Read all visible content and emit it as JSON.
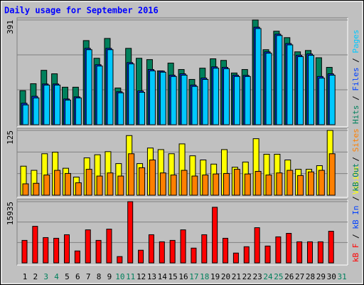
{
  "chart_data": {
    "type": "bar",
    "title": "Daily usage for September 2016",
    "categories": [
      "1",
      "2",
      "3",
      "4",
      "5",
      "6",
      "7",
      "8",
      "9",
      "10",
      "11",
      "12",
      "13",
      "14",
      "15",
      "16",
      "17",
      "18",
      "19",
      "20",
      "21",
      "22",
      "23",
      "24",
      "25",
      "26",
      "27",
      "28",
      "29",
      "30",
      "31"
    ],
    "category_colors": [
      "#000000",
      "#000000",
      "#00805c",
      "#00805c",
      "#000000",
      "#000000",
      "#000000",
      "#000000",
      "#000000",
      "#00805c",
      "#00805c",
      "#000000",
      "#000000",
      "#000000",
      "#000000",
      "#000000",
      "#00805c",
      "#00805c",
      "#000000",
      "#000000",
      "#000000",
      "#000000",
      "#000000",
      "#00805c",
      "#00805c",
      "#000000",
      "#000000",
      "#000000",
      "#000000",
      "#000000",
      "#00805c"
    ],
    "separator": " / ",
    "panels": [
      {
        "ylim": [
          0,
          391
        ],
        "yticks": [
          391
        ],
        "series": [
          {
            "name": "Hits",
            "color": "#00805c",
            "values": [
              127,
              153,
              203,
              190,
              140,
              140,
              314,
              248,
              322,
              137,
              285,
              248,
              243,
              201,
              230,
              206,
              169,
              211,
              246,
              240,
              193,
              206,
              391,
              280,
              349,
              325,
              272,
              277,
              250,
              214,
              null
            ]
          },
          {
            "name": "Files",
            "color": "#0040ff",
            "values": [
              80,
              106,
              152,
              152,
              96,
              104,
              285,
              224,
              285,
              123,
              232,
              126,
              206,
              200,
              185,
              190,
              148,
              174,
              216,
              214,
              185,
              184,
              364,
              272,
              338,
              303,
              259,
              264,
              180,
              190,
              null
            ]
          },
          {
            "name": "Pages",
            "color": "#00c8ff",
            "values": [
              74,
              100,
              148,
              148,
              92,
              100,
              280,
              219,
              280,
              119,
              227,
              121,
              201,
              196,
              180,
              185,
              143,
              169,
              211,
              209,
              180,
              180,
              359,
              267,
              333,
              298,
              254,
              259,
              174,
              185,
              null
            ]
          }
        ]
      },
      {
        "ylim": [
          0,
          125
        ],
        "yticks": [
          125
        ],
        "series": [
          {
            "name": "Visits",
            "color": "#ffff00",
            "values": [
              56,
              48,
              80,
              83,
              52,
              35,
              72,
              78,
              84,
              61,
              115,
              61,
              91,
              88,
              80,
              99,
              76,
              68,
              60,
              88,
              54,
              64,
              109,
              79,
              79,
              68,
              50,
              50,
              57,
              125,
              null
            ]
          },
          {
            "name": "Sites",
            "color": "#ff8000",
            "values": [
              22,
              23,
              39,
              48,
              42,
              24,
              50,
              37,
              43,
              37,
              80,
              53,
              68,
              43,
              39,
              48,
              37,
              39,
              41,
              42,
              50,
              41,
              46,
              39,
              43,
              48,
              38,
              45,
              48,
              80,
              null
            ]
          }
        ]
      },
      {
        "ylim": [
          0,
          15935
        ],
        "yticks": [
          15935
        ],
        "series": [
          {
            "name": "kB F",
            "color": "#ff0000",
            "values": [
              5860,
              9520,
              6590,
              6410,
              7330,
              3110,
              8600,
              5860,
              8790,
              1650,
              15935,
              3300,
              7330,
              5490,
              5860,
              8600,
              3850,
              7330,
              14470,
              6410,
              2560,
              4210,
              9160,
              4390,
              6780,
              7690,
              5490,
              5490,
              5490,
              8240,
              null
            ]
          },
          {
            "name": "kB In",
            "color": "#0040ff"
          },
          {
            "name": "kB Out",
            "color": "#00805c"
          }
        ]
      }
    ]
  }
}
